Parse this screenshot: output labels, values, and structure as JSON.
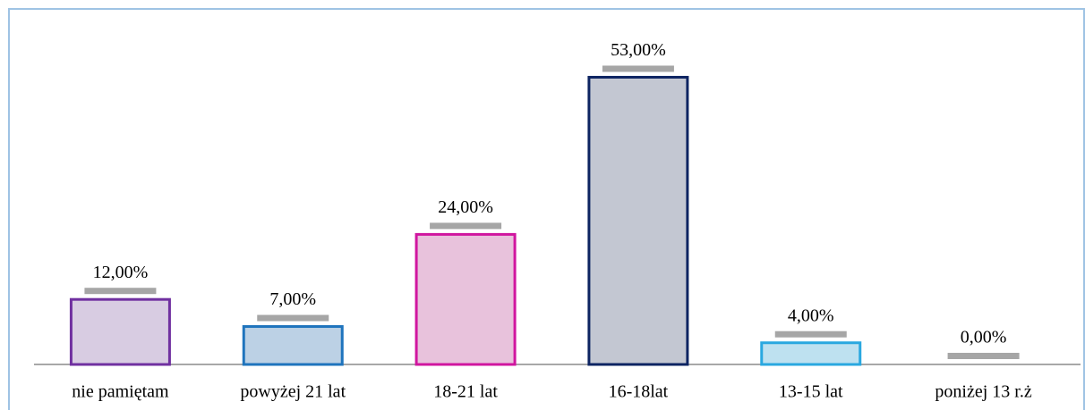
{
  "chart_data": {
    "type": "bar",
    "categories": [
      "nie pamiętam",
      "powyżej 21 lat",
      "18-21 lat",
      "16-18lat",
      "13-15 lat",
      "poniżej 13 r.ż"
    ],
    "values": [
      12,
      7,
      24,
      53,
      4,
      0
    ],
    "value_labels": [
      "12,00%",
      "7,00%",
      "24,00%",
      "53,00%",
      "4,00%",
      "0,00%"
    ],
    "colors": [
      "#7030a0",
      "#1f74bd",
      "#d0169f",
      "#0d2462",
      "#2aa8e0",
      "#a6a6a6"
    ],
    "fill_colors": [
      "#d8cce2",
      "#bcd1e5",
      "#e8c2dc",
      "#c3c7d2",
      "#bee1f0",
      "#e0e0e0"
    ],
    "ylim": [
      0,
      60
    ]
  }
}
